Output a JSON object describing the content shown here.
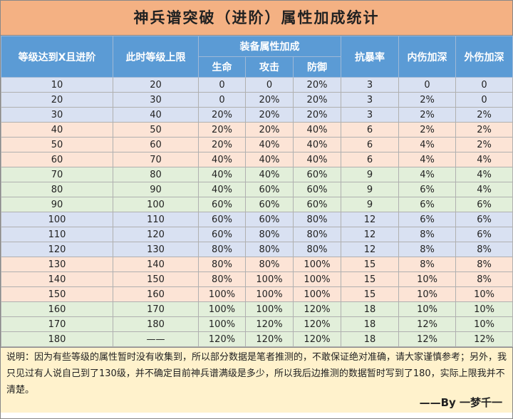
{
  "title": "神兵谱突破（进阶）属性加成统计",
  "header": {
    "level": "等级达到X且进阶",
    "cap": "此时等级上限",
    "group": "装备属性加成",
    "sub": [
      "生命",
      "攻击",
      "防御"
    ],
    "crit": "抗暴率",
    "inner": "内伤加深",
    "outer": "外伤加深"
  },
  "table": {
    "rows": [
      [
        "10",
        "20",
        "0",
        "0",
        "20%",
        "3",
        "0",
        "0"
      ],
      [
        "20",
        "30",
        "0",
        "20%",
        "20%",
        "3",
        "2%",
        "0"
      ],
      [
        "30",
        "40",
        "20%",
        "20%",
        "20%",
        "3",
        "2%",
        "2%"
      ],
      [
        "40",
        "50",
        "20%",
        "20%",
        "40%",
        "6",
        "2%",
        "2%"
      ],
      [
        "50",
        "60",
        "20%",
        "40%",
        "40%",
        "6",
        "4%",
        "2%"
      ],
      [
        "60",
        "70",
        "40%",
        "40%",
        "40%",
        "6",
        "4%",
        "4%"
      ],
      [
        "70",
        "80",
        "40%",
        "40%",
        "60%",
        "9",
        "4%",
        "4%"
      ],
      [
        "80",
        "90",
        "40%",
        "60%",
        "60%",
        "9",
        "6%",
        "4%"
      ],
      [
        "90",
        "100",
        "60%",
        "60%",
        "60%",
        "9",
        "6%",
        "6%"
      ],
      [
        "100",
        "110",
        "60%",
        "60%",
        "80%",
        "12",
        "6%",
        "6%"
      ],
      [
        "110",
        "120",
        "60%",
        "80%",
        "80%",
        "12",
        "8%",
        "6%"
      ],
      [
        "120",
        "130",
        "80%",
        "80%",
        "80%",
        "12",
        "8%",
        "8%"
      ],
      [
        "130",
        "140",
        "80%",
        "80%",
        "100%",
        "15",
        "8%",
        "8%"
      ],
      [
        "140",
        "150",
        "80%",
        "100%",
        "100%",
        "15",
        "10%",
        "8%"
      ],
      [
        "150",
        "160",
        "100%",
        "100%",
        "100%",
        "15",
        "10%",
        "10%"
      ],
      [
        "160",
        "170",
        "100%",
        "100%",
        "120%",
        "18",
        "10%",
        "10%"
      ],
      [
        "170",
        "180",
        "100%",
        "120%",
        "120%",
        "18",
        "12%",
        "10%"
      ],
      [
        "180",
        "——",
        "120%",
        "120%",
        "120%",
        "18",
        "12%",
        "12%"
      ]
    ]
  },
  "note": "说明：因为有些等级的属性暂时没有收集到，所以部分数据是笔者推测的，不敢保证绝对准确，请大家谨慎参考；另外，我只见过有人说自己到了130级，并不确定目前神兵谱满级是多少，所以我后边推测的数据暂时写到了180，实际上限我并不清楚。",
  "signature": "——By 一梦千一"
}
